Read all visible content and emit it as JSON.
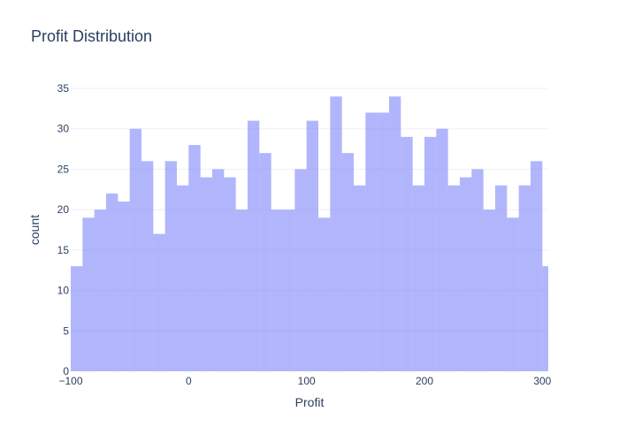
{
  "chart_data": {
    "type": "bar",
    "title": "Profit Distribution",
    "xlabel": "Profit",
    "ylabel": "count",
    "xlim": [
      -100,
      305
    ],
    "ylim": [
      0,
      35
    ],
    "x_ticks": [
      -100,
      0,
      100,
      200,
      300
    ],
    "x_tick_labels": [
      "−100",
      "0",
      "100",
      "200",
      "300"
    ],
    "y_ticks": [
      0,
      5,
      10,
      15,
      20,
      25,
      30,
      35
    ],
    "bin_start": -100,
    "bin_width": 10,
    "values": [
      13,
      19,
      20,
      22,
      21,
      30,
      26,
      17,
      26,
      23,
      28,
      24,
      25,
      24,
      20,
      31,
      27,
      20,
      20,
      25,
      31,
      19,
      34,
      27,
      23,
      32,
      32,
      34,
      29,
      23,
      29,
      30,
      23,
      24,
      25,
      20,
      23,
      19,
      23,
      26,
      13
    ],
    "bar_color": "#636efa",
    "grid": true
  }
}
